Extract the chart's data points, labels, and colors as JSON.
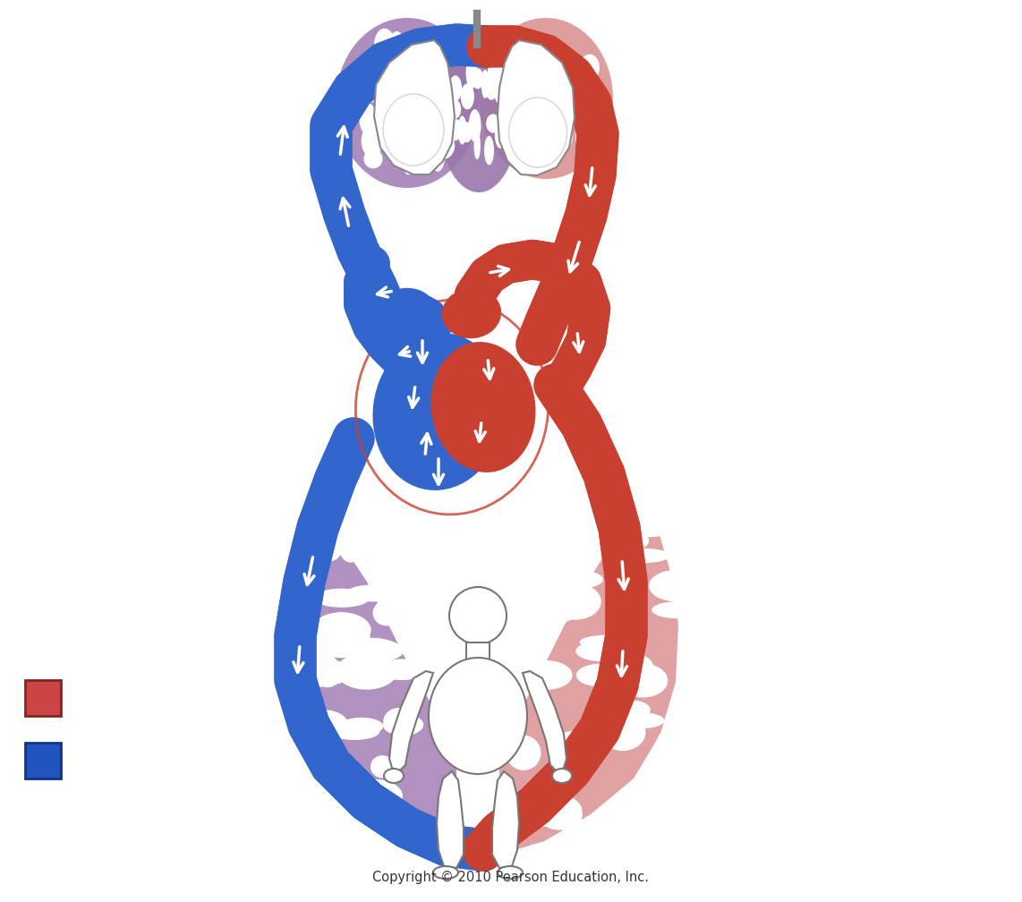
{
  "background_color": "#ffffff",
  "red_color": "#CC3322",
  "red_vessel": "#C94030",
  "blue_color": "#2255BB",
  "blue_vessel": "#3366CC",
  "purple_color": "#9977AA",
  "pink_color": "#CC8888",
  "purple_light": "#AA88BB",
  "pink_light": "#DD9999",
  "body_edge": "#888888",
  "copyright_text": "Copyright © 2010 Pearson Education, Inc.",
  "figsize": [
    11.42,
    10.08
  ],
  "dpi": 100,
  "legend_red": "#CC4444",
  "legend_blue": "#2255BB"
}
